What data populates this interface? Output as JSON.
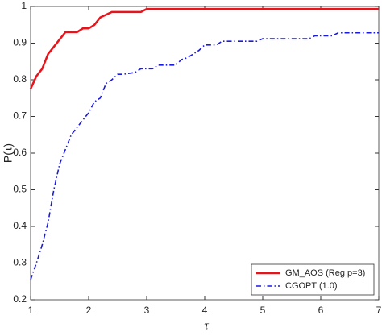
{
  "chart_data": {
    "type": "line",
    "x_label": "τ",
    "y_label": "P(τ)",
    "xlim": [
      1,
      7
    ],
    "xticks": [
      1,
      2,
      3,
      4,
      5,
      6,
      7
    ],
    "ylim": [
      0.2,
      1
    ],
    "yticks": [
      0.2,
      0.3,
      0.4,
      0.5,
      0.6,
      0.7,
      0.8,
      0.9,
      1
    ],
    "legend": "lower right",
    "series": [
      {
        "name": "GM_AOS (Reg p=3)",
        "color": "#e8141b",
        "style": "solid",
        "x": [
          1,
          1.1,
          1.2,
          1.3,
          1.4,
          1.5,
          1.6,
          1.8,
          1.9,
          2.0,
          2.1,
          2.2,
          2.4,
          2.9,
          3.0,
          7
        ],
        "values": [
          0.775,
          0.81,
          0.83,
          0.87,
          0.89,
          0.91,
          0.93,
          0.93,
          0.94,
          0.94,
          0.95,
          0.97,
          0.985,
          0.985,
          0.993,
          0.993
        ]
      },
      {
        "name": "CGOPT (1.0)",
        "color": "#1a1ae0",
        "style": "dashdot",
        "x": [
          1,
          1.1,
          1.2,
          1.3,
          1.4,
          1.5,
          1.6,
          1.7,
          1.8,
          1.9,
          2.0,
          2.1,
          2.2,
          2.3,
          2.4,
          2.5,
          2.6,
          2.8,
          2.9,
          3.1,
          3.2,
          3.5,
          3.6,
          3.7,
          3.8,
          3.9,
          4.0,
          4.2,
          4.3,
          4.9,
          5.0,
          5.8,
          5.9,
          6.2,
          6.3,
          7
        ],
        "values": [
          0.255,
          0.3,
          0.35,
          0.41,
          0.5,
          0.57,
          0.61,
          0.65,
          0.67,
          0.69,
          0.71,
          0.74,
          0.75,
          0.79,
          0.8,
          0.815,
          0.815,
          0.82,
          0.83,
          0.83,
          0.84,
          0.84,
          0.855,
          0.86,
          0.87,
          0.88,
          0.895,
          0.895,
          0.905,
          0.905,
          0.912,
          0.912,
          0.92,
          0.92,
          0.928,
          0.928
        ]
      }
    ]
  }
}
